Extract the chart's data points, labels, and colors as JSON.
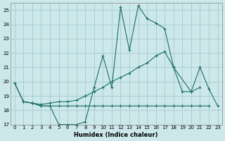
{
  "xlabel": "Humidex (Indice chaleur)",
  "ylabel": "",
  "xlim": [
    -0.5,
    23.5
  ],
  "ylim": [
    17,
    25.5
  ],
  "yticks": [
    17,
    18,
    19,
    20,
    21,
    22,
    23,
    24,
    25
  ],
  "xticks": [
    0,
    1,
    2,
    3,
    4,
    5,
    6,
    7,
    8,
    9,
    10,
    11,
    12,
    13,
    14,
    15,
    16,
    17,
    18,
    19,
    20,
    21,
    22,
    23
  ],
  "bg_color": "#cce8ea",
  "line_color": "#1a6e64",
  "grid_color": "#aacfd2",
  "series": [
    {
      "x": [
        0,
        1,
        2,
        3,
        4,
        5,
        6,
        7,
        8,
        9,
        10,
        11,
        12,
        13,
        14,
        15,
        16,
        17,
        18,
        20,
        21
      ],
      "y": [
        19.9,
        18.6,
        18.5,
        18.3,
        18.3,
        17.0,
        17.0,
        17.0,
        17.2,
        19.6,
        21.8,
        19.6,
        25.2,
        22.2,
        25.3,
        24.4,
        24.1,
        23.7,
        21.0,
        19.3,
        19.6
      ]
    },
    {
      "x": [
        0,
        1,
        2,
        3,
        4,
        5,
        6,
        7,
        8,
        9,
        10,
        11,
        12,
        13,
        14,
        15,
        16,
        17,
        18,
        19,
        20,
        21,
        22,
        23
      ],
      "y": [
        19.9,
        18.6,
        18.5,
        18.4,
        18.5,
        18.6,
        18.6,
        18.7,
        19.0,
        19.3,
        19.6,
        20.0,
        20.3,
        20.6,
        21.0,
        21.3,
        21.8,
        22.1,
        21.0,
        19.3,
        19.3,
        21.0,
        19.5,
        18.3
      ]
    },
    {
      "x": [
        1,
        2,
        3,
        4,
        5,
        6,
        7,
        8,
        9,
        10,
        11,
        12,
        13,
        14,
        15,
        16,
        17,
        18,
        19,
        20,
        21,
        22
      ],
      "y": [
        18.6,
        18.5,
        18.3,
        18.3,
        18.3,
        18.3,
        18.3,
        18.3,
        18.3,
        18.3,
        18.3,
        18.3,
        18.3,
        18.3,
        18.3,
        18.3,
        18.3,
        18.3,
        18.3,
        18.3,
        18.3,
        18.3
      ]
    }
  ]
}
